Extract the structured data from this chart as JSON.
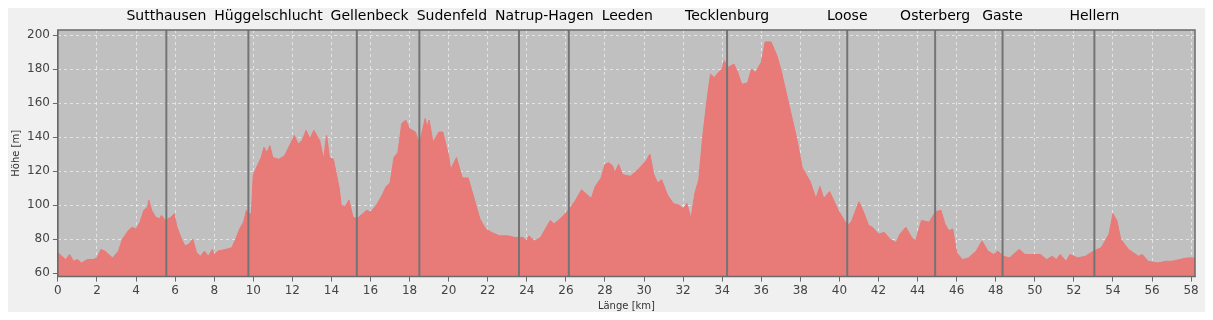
{
  "chart_data": {
    "type": "area",
    "xlabel": "Länge [km]",
    "ylabel": "Höhe [m]",
    "x": [
      0,
      0.2,
      0.4,
      0.6,
      0.8,
      1.0,
      1.2,
      1.5,
      1.8,
      2.0,
      2.2,
      2.4,
      2.8,
      3.1,
      3.3,
      3.6,
      3.8,
      4.0,
      4.2,
      4.4,
      4.6,
      4.65,
      4.8,
      5.0,
      5.2,
      5.3,
      5.5,
      5.8,
      5.95,
      6.1,
      6.3,
      6.5,
      6.7,
      6.9,
      7.1,
      7.3,
      7.5,
      7.7,
      7.9,
      8.0,
      8.2,
      8.6,
      8.9,
      9.1,
      9.3,
      9.5,
      9.65,
      9.75,
      9.9,
      10.0,
      10.2,
      10.4,
      10.55,
      10.7,
      10.85,
      11.0,
      11.3,
      11.6,
      11.9,
      12.1,
      12.3,
      12.5,
      12.7,
      12.9,
      13.1,
      13.4,
      13.6,
      13.75,
      13.9,
      14.1,
      14.4,
      14.5,
      14.7,
      14.9,
      15.1,
      15.3,
      15.6,
      15.8,
      16.0,
      16.3,
      16.6,
      16.8,
      17.0,
      17.2,
      17.4,
      17.6,
      17.8,
      18.0,
      18.3,
      18.5,
      18.8,
      18.9,
      19.0,
      19.2,
      19.5,
      19.7,
      20.0,
      20.1,
      20.4,
      20.7,
      21.0,
      21.3,
      21.6,
      21.9,
      22.2,
      22.6,
      23.0,
      23.4,
      23.8,
      24.0,
      24.1,
      24.4,
      24.7,
      25.0,
      25.2,
      25.4,
      25.8,
      26.2,
      26.5,
      26.8,
      27.0,
      27.3,
      27.5,
      27.8,
      28.0,
      28.2,
      28.4,
      28.5,
      28.7,
      28.9,
      29.3,
      29.7,
      30.1,
      30.3,
      30.5,
      30.7,
      30.9,
      31.2,
      31.5,
      31.8,
      32.0,
      32.2,
      32.4,
      32.6,
      32.8,
      33.0,
      33.2,
      33.4,
      33.6,
      33.8,
      34.0,
      34.1,
      34.3,
      34.6,
      34.8,
      35.0,
      35.3,
      35.5,
      35.7,
      36.0,
      36.2,
      36.5,
      36.8,
      37.0,
      37.2,
      37.5,
      37.8,
      38.1,
      38.5,
      38.8,
      39.0,
      39.2,
      39.5,
      39.9,
      40.2,
      40.4,
      40.6,
      41.0,
      41.2,
      41.5,
      41.7,
      42.0,
      42.3,
      42.6,
      42.9,
      43.1,
      43.4,
      43.7,
      43.9,
      44.2,
      44.6,
      44.9,
      45.2,
      45.4,
      45.6,
      45.8,
      46.0,
      46.3,
      46.6,
      47.0,
      47.3,
      47.6,
      47.9,
      48.1,
      48.4,
      48.7,
      48.9,
      49.2,
      49.5,
      50.0,
      50.3,
      50.6,
      50.9,
      51.1,
      51.3,
      51.6,
      51.8,
      52.2,
      52.6,
      53.0,
      53.4,
      53.8,
      54.0,
      54.2,
      54.4,
      54.8,
      55.3,
      55.5,
      55.8,
      56.3,
      56.7,
      57.0,
      57.4,
      57.8,
      58.2
    ],
    "series": [
      {
        "color": "#e87a78",
        "values": [
          72,
          70,
          68,
          71,
          67,
          68,
          66,
          68,
          68,
          69,
          74,
          73,
          69,
          73,
          80,
          85,
          87,
          86,
          90,
          97,
          99,
          103,
          97,
          93,
          92,
          94,
          91,
          93,
          95,
          87,
          81,
          76,
          77,
          80,
          72,
          70,
          73,
          70,
          74,
          71,
          73,
          74,
          75,
          80,
          86,
          90,
          97,
          95,
          95,
          118,
          123,
          128,
          134,
          131,
          135,
          128,
          127,
          129,
          136,
          141,
          136,
          138,
          144,
          139,
          144,
          138,
          127,
          141,
          128,
          127,
          110,
          100,
          99,
          103,
          93,
          92,
          95,
          97,
          96,
          100,
          106,
          111,
          113,
          128,
          131,
          148,
          150,
          145,
          143,
          136,
          151,
          146,
          150,
          137,
          143,
          143,
          129,
          121,
          128,
          116,
          116,
          104,
          92,
          86,
          84,
          82,
          82,
          81,
          81,
          79,
          82,
          79,
          81,
          87,
          91,
          89,
          93,
          98,
          103,
          109,
          107,
          104,
          111,
          116,
          124,
          125,
          123,
          119,
          124,
          118,
          117,
          121,
          126,
          130,
          118,
          113,
          115,
          106,
          101,
          100,
          98,
          101,
          92,
          107,
          115,
          140,
          160,
          177,
          175,
          178,
          180,
          185,
          181,
          183,
          178,
          171,
          172,
          180,
          178,
          184,
          196,
          196,
          188,
          180,
          170,
          155,
          140,
          122,
          114,
          104,
          111,
          104,
          108,
          98,
          92,
          88,
          90,
          102,
          97,
          88,
          87,
          83,
          84,
          80,
          78,
          83,
          87,
          81,
          79,
          91,
          90,
          96,
          97,
          89,
          85,
          86,
          72,
          68,
          69,
          73,
          79,
          73,
          71,
          73,
          70,
          69,
          71,
          74,
          71,
          71,
          71,
          68,
          70,
          68,
          71,
          67,
          71,
          69,
          70,
          73,
          75,
          83,
          95,
          91,
          80,
          74,
          70,
          71,
          67,
          66,
          67,
          67,
          68,
          69,
          69
        ]
      }
    ],
    "xlim": [
      0,
      58.2
    ],
    "ylim": [
      58,
      203
    ],
    "xticks": [
      0,
      2,
      4,
      6,
      8,
      10,
      12,
      14,
      16,
      18,
      20,
      22,
      24,
      26,
      28,
      30,
      32,
      34,
      36,
      38,
      40,
      42,
      44,
      46,
      48,
      50,
      52,
      54,
      56,
      58
    ],
    "yticks": [
      60,
      80,
      100,
      120,
      140,
      160,
      180,
      200
    ],
    "grid": true,
    "ref_lines": [
      {
        "axis": "x",
        "value": 5.55,
        "label": "Sutthausen",
        "color": "#747474"
      },
      {
        "axis": "x",
        "value": 9.75,
        "label": "Hüggelschlucht",
        "color": "#747474"
      },
      {
        "axis": "x",
        "value": 15.3,
        "label": "Gellenbeck",
        "color": "#747474"
      },
      {
        "axis": "x",
        "value": 18.5,
        "label": "Sudenfeld",
        "color": "#747474"
      },
      {
        "axis": "x",
        "value": 23.6,
        "label": "Natrup-Hagen",
        "color": "#747474"
      },
      {
        "axis": "x",
        "value": 26.15,
        "label": "Leeden",
        "color": "#747474"
      },
      {
        "axis": "x",
        "value": 34.25,
        "label": "Tecklenburg",
        "color": "#747474"
      },
      {
        "axis": "x",
        "value": 40.4,
        "label": "Loose",
        "color": "#747474"
      },
      {
        "axis": "x",
        "value": 44.9,
        "label": "Osterberg",
        "color": "#747474"
      },
      {
        "axis": "x",
        "value": 48.35,
        "label": "Gaste",
        "color": "#747474"
      },
      {
        "axis": "x",
        "value": 53.05,
        "label": "Hellern",
        "color": "#747474"
      }
    ]
  }
}
